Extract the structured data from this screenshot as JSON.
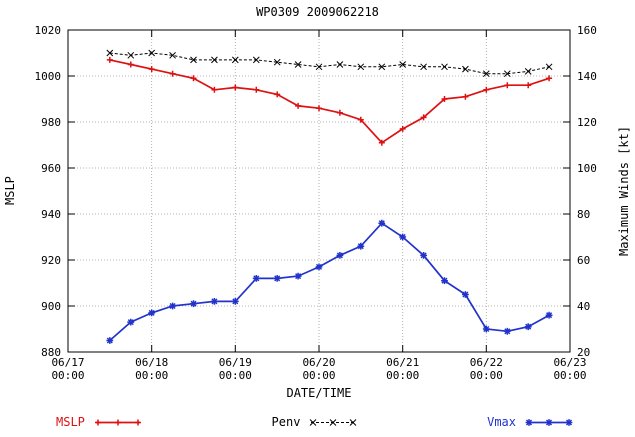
{
  "title": "WP0309 2009062218",
  "chart_data": {
    "type": "line",
    "title": "WP0309 2009062218",
    "xlabel": "DATE/TIME",
    "ylabel_left": "MSLP",
    "ylabel_right": "Maximum Winds [kt]",
    "grid": true,
    "x_axis": {
      "min_day": 17,
      "max_day": 23,
      "ticks": [
        {
          "date": "06/17",
          "time": "00:00"
        },
        {
          "date": "06/18",
          "time": "00:00"
        },
        {
          "date": "06/19",
          "time": "00:00"
        },
        {
          "date": "06/20",
          "time": "00:00"
        },
        {
          "date": "06/21",
          "time": "00:00"
        },
        {
          "date": "06/22",
          "time": "00:00"
        },
        {
          "date": "06/23",
          "time": "00:00"
        }
      ]
    },
    "y_left": {
      "min": 880,
      "max": 1020,
      "step": 20,
      "ticks": [
        880,
        900,
        920,
        940,
        960,
        980,
        1000,
        1020
      ]
    },
    "y_right": {
      "min": 20,
      "max": 160,
      "step": 20,
      "ticks": [
        20,
        40,
        60,
        80,
        100,
        120,
        140,
        160
      ]
    },
    "x_days": [
      17.5,
      17.75,
      18.0,
      18.25,
      18.5,
      18.75,
      19.0,
      19.25,
      19.5,
      19.75,
      20.0,
      20.25,
      20.5,
      20.75,
      21.0,
      21.25,
      21.5,
      21.75,
      22.0,
      22.25,
      22.5,
      22.75
    ],
    "series": [
      {
        "name": "MSLP",
        "axis": "left",
        "color": "#dd1111",
        "marker": "plus",
        "line": "solid",
        "values": [
          1007,
          1005,
          1003,
          1001,
          999,
          994,
          995,
          994,
          992,
          987,
          986,
          984,
          981,
          971,
          977,
          982,
          990,
          991,
          994,
          996,
          996,
          999
        ]
      },
      {
        "name": "Penv",
        "axis": "left",
        "color": "#000000",
        "marker": "x",
        "line": "dashed",
        "values": [
          1010,
          1009,
          1010,
          1009,
          1007,
          1007,
          1007,
          1007,
          1006,
          1005,
          1004,
          1005,
          1004,
          1004,
          1005,
          1004,
          1004,
          1003,
          1001,
          1001,
          1002,
          1004
        ]
      },
      {
        "name": "Vmax",
        "axis": "right",
        "color": "#2233cc",
        "marker": "star",
        "line": "solid",
        "values": [
          25,
          33,
          37,
          40,
          41,
          42,
          42,
          52,
          52,
          53,
          57,
          62,
          66,
          76,
          70,
          62,
          51,
          45,
          30,
          29,
          31,
          36
        ]
      }
    ],
    "legend": {
      "position": "bottom",
      "entries": [
        "MSLP",
        "Penv",
        "Vmax"
      ]
    }
  }
}
